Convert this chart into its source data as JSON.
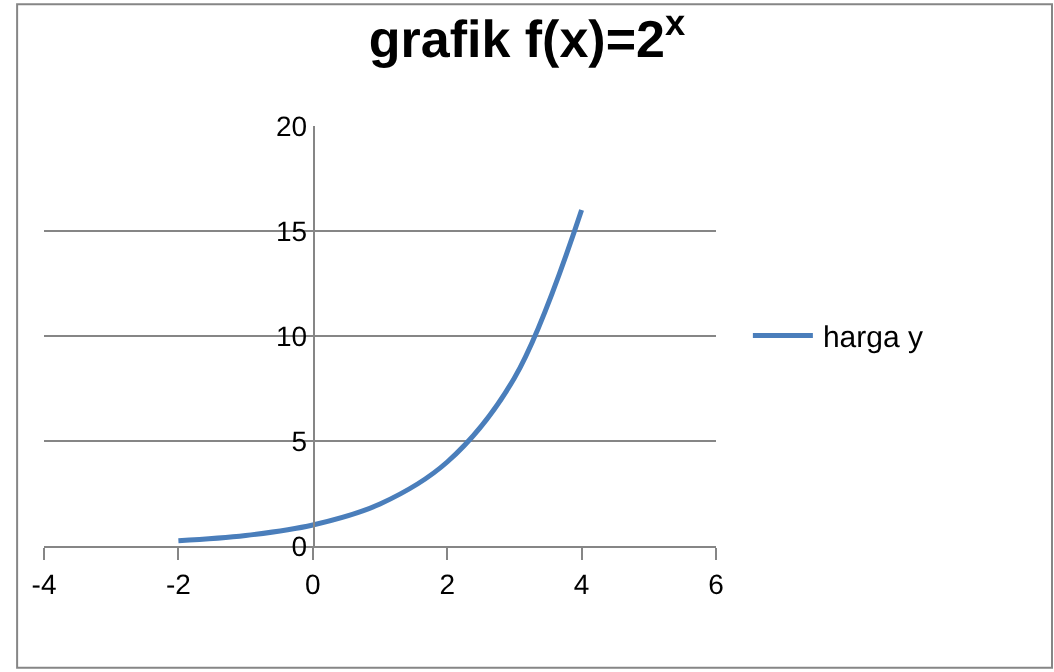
{
  "chart_data": {
    "type": "line",
    "title": "grafik f(x)=2$^{x}$",
    "x": [
      -2,
      -1,
      0,
      1,
      2,
      3,
      4
    ],
    "series": [
      {
        "name": "harga y",
        "color": "#4a7ebb",
        "values": [
          0.25,
          0.5,
          1,
          2,
          4,
          8,
          16
        ]
      }
    ],
    "xlim": [
      -4,
      6
    ],
    "xticks": [
      -4,
      -2,
      0,
      2,
      4,
      6
    ],
    "ylim": [
      0,
      20
    ],
    "yticks": [
      0,
      5,
      10,
      15,
      20
    ],
    "grid": "y",
    "legend": "right",
    "marker": "none",
    "line_style": "solid"
  }
}
